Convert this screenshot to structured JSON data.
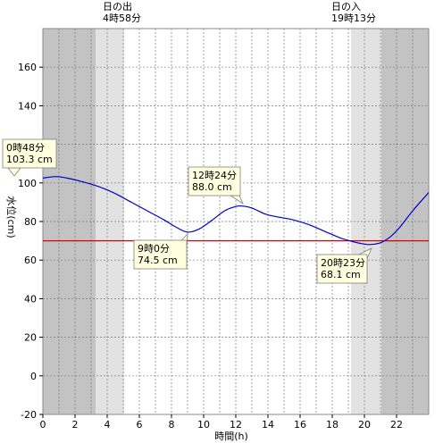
{
  "chart_data": {
    "type": "line",
    "xlabel": "時間(h)",
    "ylabel": "水位(cm)",
    "xlim": [
      0,
      24
    ],
    "ylim": [
      -20,
      180
    ],
    "x_ticks": [
      0,
      2,
      4,
      6,
      8,
      10,
      12,
      14,
      16,
      18,
      20,
      22
    ],
    "y_ticks": [
      -20,
      0,
      20,
      40,
      60,
      80,
      100,
      120,
      140,
      160
    ],
    "grid": true,
    "reference_line": {
      "value": 70,
      "color": "#e00000"
    },
    "sunrise": {
      "title": "日の出",
      "time": "4時58分",
      "hour": 4.967
    },
    "sunset": {
      "title": "日の入",
      "time": "19時13分",
      "hour": 19.217
    },
    "series": [
      {
        "color": "#0000cc",
        "x": [
          0,
          0.8,
          1.5,
          2.5,
          3.5,
          4.5,
          5.5,
          6.5,
          7.5,
          8.3,
          9.0,
          9.7,
          10.5,
          11.3,
          12.0,
          12.4,
          13.0,
          13.8,
          14.5,
          15.5,
          16.5,
          17.5,
          18.5,
          19.3,
          20.0,
          20.4,
          21.0,
          21.6,
          22.2,
          23.0,
          24.0
        ],
        "y": [
          102.5,
          103.3,
          102.5,
          100.5,
          98.0,
          94.5,
          90.0,
          85.5,
          81.0,
          77.0,
          74.5,
          76.0,
          80.5,
          85.5,
          87.8,
          88.0,
          87.0,
          84.0,
          82.5,
          81.0,
          78.5,
          75.0,
          71.5,
          69.5,
          68.3,
          68.1,
          69.0,
          72.0,
          77.0,
          85.5,
          95.0
        ]
      }
    ],
    "annotations": [
      {
        "time": "0時48分",
        "value": "103.3 cm"
      },
      {
        "time": "12時24分",
        "value": "88.0 cm"
      },
      {
        "time": "9時0分",
        "value": "74.5 cm"
      },
      {
        "time": "20時23分",
        "value": "68.1 cm"
      }
    ]
  }
}
